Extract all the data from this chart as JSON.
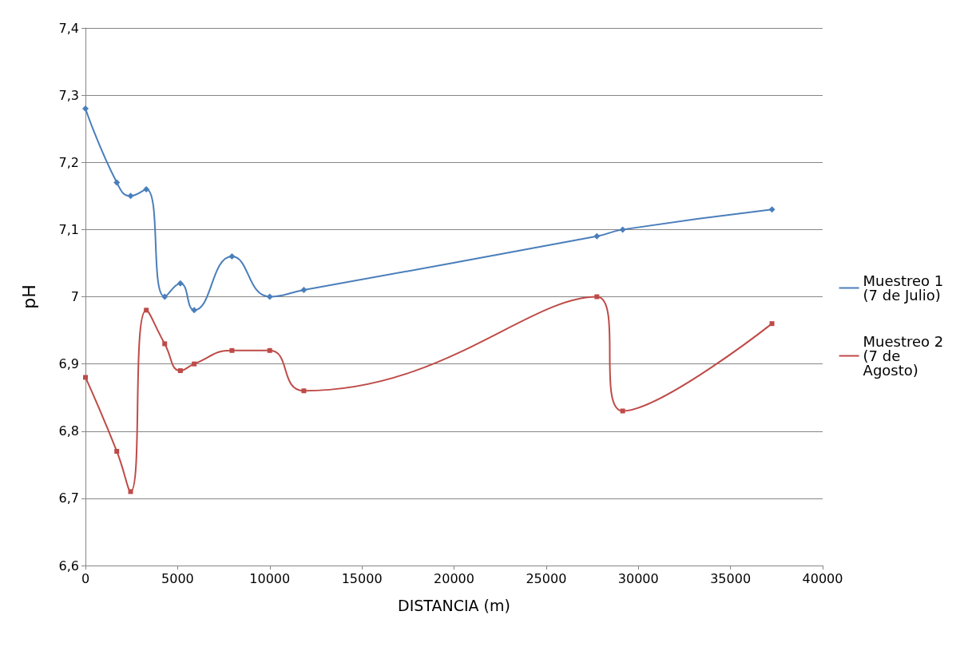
{
  "chart_data": {
    "type": "line",
    "xlabel": "DISTANCIA (m)",
    "ylabel": "pH",
    "x": [
      0,
      1700,
      2450,
      3300,
      4300,
      5150,
      5900,
      7950,
      10000,
      11850,
      27750,
      29150,
      37250
    ],
    "series": [
      {
        "name": "Muestreo 1 (7 de Julio)",
        "color": "#4a7ebb",
        "marker": "diamond",
        "values": [
          7.28,
          7.17,
          7.15,
          7.16,
          7.0,
          7.02,
          6.98,
          7.06,
          7.0,
          7.01,
          7.09,
          7.1,
          7.13
        ]
      },
      {
        "name": "Muestreo 2 (7 de Agosto)",
        "color": "#be4b48",
        "marker": "square",
        "values": [
          6.88,
          6.77,
          6.71,
          6.98,
          6.93,
          6.89,
          6.9,
          6.92,
          6.92,
          6.86,
          7.0,
          6.83,
          6.96
        ]
      }
    ],
    "xlim": [
      0,
      40000
    ],
    "xticks": [
      0,
      5000,
      10000,
      15000,
      20000,
      25000,
      30000,
      35000,
      40000
    ],
    "ylim": [
      6.6,
      7.4
    ],
    "yticks": [
      {
        "value": 6.6,
        "label": "6,6"
      },
      {
        "value": 6.7,
        "label": "6,7"
      },
      {
        "value": 6.8,
        "label": "6,8"
      },
      {
        "value": 6.9,
        "label": "6,9"
      },
      {
        "value": 7,
        "label": "7"
      },
      {
        "value": 7.1,
        "label": "7,1"
      },
      {
        "value": 7.2,
        "label": "7,2"
      },
      {
        "value": 7.3,
        "label": "7,3"
      },
      {
        "value": 7.4,
        "label": "7,4"
      }
    ],
    "grid": "y",
    "legend": "right",
    "line_style": "solid"
  }
}
